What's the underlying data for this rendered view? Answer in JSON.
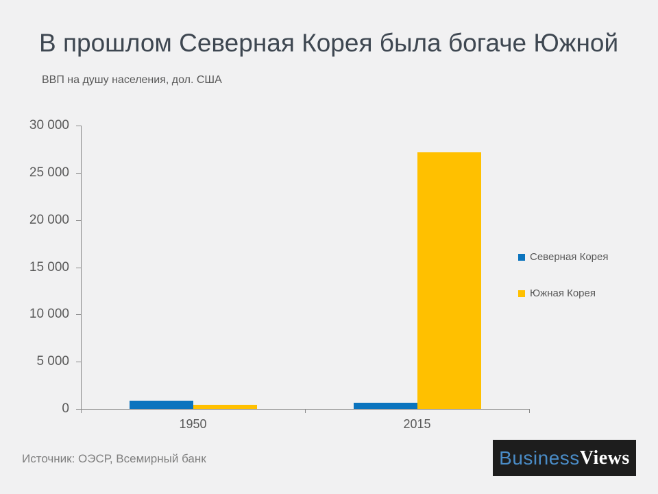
{
  "page": {
    "background": "#f1f1f2"
  },
  "header": {
    "title": "В прошлом Северная Корея была богаче Южной",
    "subtitle": "ВВП на душу населения, дол. США"
  },
  "footer": {
    "source": "Источник: ОЭСР, Всемирный банк",
    "logo": {
      "part1": "Business",
      "part2": "Views",
      "background": "#1d1d1d",
      "part1_color": "#4a8cc7",
      "part2_color": "#ffffff"
    }
  },
  "chart_data": {
    "type": "bar",
    "title": "В прошлом Северная Корея была богаче Южной",
    "subtitle": "ВВП на душу населения, дол. США",
    "categories": [
      "1950",
      "2015"
    ],
    "series": [
      {
        "id": "north-korea",
        "name": "Северная Корея",
        "color": "#0b74be",
        "values": [
          850,
          650
        ]
      },
      {
        "id": "south-korea",
        "name": "Южная Корея",
        "color": "#ffc000",
        "values": [
          430,
          27200
        ]
      }
    ],
    "ylim": [
      0,
      30000
    ],
    "y_ticks": [
      {
        "value": 0,
        "label": "0"
      },
      {
        "value": 5000,
        "label": "5 000"
      },
      {
        "value": 10000,
        "label": "10 000"
      },
      {
        "value": 15000,
        "label": "15 000"
      },
      {
        "value": 20000,
        "label": "20 000"
      },
      {
        "value": 25000,
        "label": "25 000"
      },
      {
        "value": 30000,
        "label": "30 000"
      }
    ],
    "grid": false,
    "legend_position": "right",
    "axis_color": "#898989",
    "tick_text_color": "#595959"
  }
}
